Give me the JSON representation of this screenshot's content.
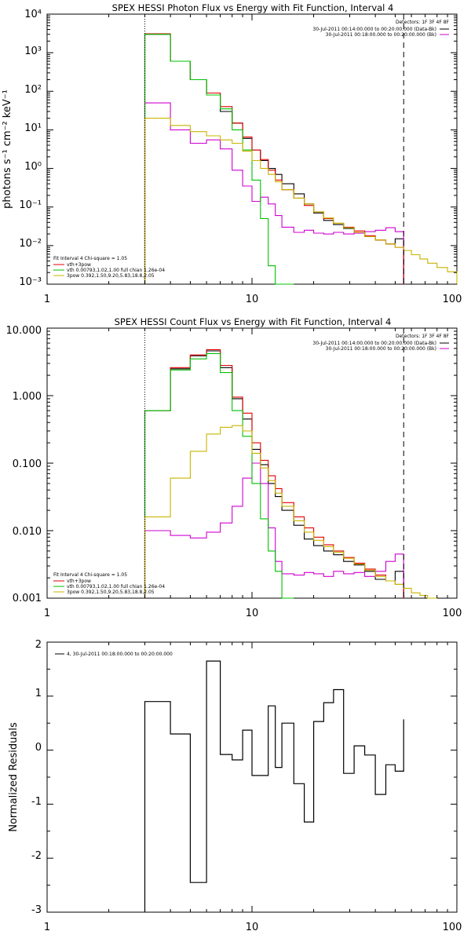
{
  "chart_data": [
    {
      "type": "line",
      "title": "SPEX HESSI Photon Flux vs Energy with Fit Function, Interval 4",
      "ylabel": "photons s⁻¹ cm⁻² keV⁻¹",
      "xscale": "log",
      "yscale": "log",
      "xlim": [
        1,
        100
      ],
      "ylim": [
        0.001,
        10000
      ],
      "x_ticks": [
        "1",
        "10",
        "100"
      ],
      "y_ticks": [
        "10⁻³",
        "10⁻²",
        "10⁻¹",
        "10⁰",
        "10¹",
        "10²",
        "10³",
        "10⁴"
      ],
      "detectors_header": "Detectors: 1F 3F 4F 8F",
      "detector_legend": [
        {
          "label": "30-Jul-2011 00:14:00.000 to 00:20:00.000 (Data-Bk)",
          "color": "#000000"
        },
        {
          "label": "30-Jul-2011 00:18:00.000 to 00:20:00.000 (Bk)",
          "color": "#d000d0"
        }
      ],
      "fit_header": "Fit Interval 4   Chi-square = 1.05",
      "fit_legend": [
        {
          "label": "vth+3pow",
          "color": "#e00000"
        },
        {
          "label": "vth 0.00793,1.02,1.00  full chian 1.26e-04",
          "color": "#00c000"
        },
        {
          "label": "3pow 0.392,1.50,9.20,5.83,18.8,2.05",
          "color": "#c8b400"
        }
      ],
      "vlines": [
        {
          "x": 3.0,
          "style": "dotted"
        },
        {
          "x": 55,
          "style": "dashed"
        }
      ],
      "edges": [
        3.0,
        4.0,
        5.0,
        6.0,
        7.0,
        8.0,
        9.0,
        10.0,
        11.0,
        12.0,
        13.0,
        14.0,
        16.0,
        18.0,
        20.0,
        22.4,
        25.0,
        28.0,
        31.5,
        35.5,
        40.0,
        45.0,
        50.0,
        55.0,
        60.0,
        66.0,
        72.0,
        80.0,
        90.0,
        100.0
      ],
      "series": [
        {
          "name": "Data-Bk",
          "color": "#000000",
          "width": 1.1,
          "values": [
            3000,
            600,
            200,
            90,
            30,
            15,
            6,
            3,
            1.6,
            1.0,
            0.7,
            0.4,
            0.22,
            0.12,
            0.07,
            0.045,
            0.035,
            0.028,
            0.022,
            0.017,
            0.014,
            0.011,
            0.015
          ]
        },
        {
          "name": "Bk",
          "color": "#d000d0",
          "width": 1.1,
          "values": [
            50,
            10,
            4.5,
            5.5,
            3.2,
            0.9,
            0.35,
            0.14,
            0.18,
            0.12,
            0.06,
            0.03,
            0.022,
            0.025,
            0.021,
            0.02,
            0.022,
            0.02,
            0.021,
            0.023,
            0.025,
            0.029,
            0.023
          ]
        },
        {
          "name": "vth+3pow",
          "color": "#e00000",
          "width": 1.1,
          "values": [
            3100,
            600,
            200,
            90,
            40,
            15,
            6.5,
            3,
            1.7,
            0.9,
            0.5,
            0.28,
            0.17,
            0.11,
            0.075,
            0.05,
            0.038,
            0.03,
            0.024,
            0.018,
            0.014,
            0.011,
            0.009
          ]
        },
        {
          "name": "vth",
          "color": "#00c000",
          "width": 1.1,
          "values": [
            3000,
            600,
            200,
            80,
            35,
            10,
            3,
            0.5,
            0.05,
            0.003,
            0.001,
            0.0005
          ]
        },
        {
          "name": "3pow",
          "color": "#c8b400",
          "width": 1.1,
          "values": [
            20,
            13,
            9,
            7,
            5.5,
            4.5,
            2.8,
            1.6,
            1.0,
            0.7,
            0.45,
            0.28,
            0.17,
            0.12,
            0.075,
            0.052,
            0.038,
            0.029,
            0.022,
            0.017,
            0.014,
            0.011,
            0.009,
            0.0075,
            0.0058,
            0.0045,
            0.0035,
            0.0027,
            0.0021
          ]
        }
      ]
    },
    {
      "type": "line",
      "title": "SPEX HESSI Count Flux vs Energy with Fit Function, Interval 4",
      "ylabel": "",
      "xscale": "log",
      "yscale": "log",
      "xlim": [
        1,
        100
      ],
      "ylim": [
        0.001,
        10
      ],
      "x_ticks": [
        "1",
        "10",
        "100"
      ],
      "y_ticks": [
        "0.001",
        "0.010",
        "0.100",
        "1.000",
        "10.000"
      ],
      "detectors_header": "Detectors: 1F 3F 4F 8F",
      "detector_legend": [
        {
          "label": "30-Jul-2011 00:14:00.000 to 00:20:00.000 (Data-Bk)",
          "color": "#000000"
        },
        {
          "label": "30-Jul-2011 00:18:00.000 to 00:20:00.000 (Bk)",
          "color": "#d000d0"
        }
      ],
      "fit_header": "Fit Interval 4   Chi-square = 1.05",
      "fit_legend": [
        {
          "label": "vth+3pow",
          "color": "#e00000"
        },
        {
          "label": "vth 0.00793,1.02,1.00  full chian 1.26e-04",
          "color": "#00c000"
        },
        {
          "label": "3pow 0.392,1.50,9.20,5.83,18.8,2.05",
          "color": "#c8b400"
        }
      ],
      "vlines": [
        {
          "x": 3.0,
          "style": "dotted"
        },
        {
          "x": 55,
          "style": "dashed"
        }
      ],
      "edges": [
        3.0,
        4.0,
        5.0,
        6.0,
        7.0,
        8.0,
        9.0,
        10.0,
        11.0,
        12.0,
        13.0,
        14.0,
        16.0,
        18.0,
        20.0,
        22.4,
        25.0,
        28.0,
        31.5,
        35.5,
        40.0,
        45.0,
        50.0,
        55.0,
        60.0,
        66.0,
        72.0,
        80.0,
        90.0,
        100.0
      ],
      "series": [
        {
          "name": "Data-Bk",
          "color": "#000000",
          "width": 1.1,
          "values": [
            0.6,
            2.5,
            3.9,
            4.6,
            2.6,
            0.9,
            0.45,
            0.16,
            0.095,
            0.05,
            0.032,
            0.02,
            0.012,
            0.0075,
            0.006,
            0.005,
            0.0044,
            0.0035,
            0.0031,
            0.0025,
            0.0019,
            0.0018,
            0.0025
          ]
        },
        {
          "name": "Bk",
          "color": "#d000d0",
          "width": 1.1,
          "values": [
            0.01,
            0.0085,
            0.0078,
            0.0095,
            0.013,
            0.023,
            0.06,
            0.1,
            0.05,
            0.011,
            0.0035,
            0.0023,
            0.0022,
            0.0024,
            0.0023,
            0.0021,
            0.0025,
            0.0023,
            0.0024,
            0.0021,
            0.0025,
            0.0035,
            0.0045
          ]
        },
        {
          "name": "vth+3pow",
          "color": "#e00000",
          "width": 1.1,
          "values": [
            0.6,
            2.6,
            4.0,
            4.8,
            2.8,
            0.95,
            0.55,
            0.2,
            0.11,
            0.065,
            0.042,
            0.026,
            0.016,
            0.011,
            0.008,
            0.0062,
            0.005,
            0.004,
            0.0033,
            0.0027,
            0.0022,
            0.0018,
            0.0016
          ]
        },
        {
          "name": "vth",
          "color": "#00c000",
          "width": 1.1,
          "values": [
            0.6,
            2.4,
            3.5,
            4.2,
            2.2,
            0.6,
            0.25,
            0.05,
            0.015,
            0.005,
            0.0025,
            0.001
          ]
        },
        {
          "name": "3pow",
          "color": "#c8b400",
          "width": 1.1,
          "values": [
            0.016,
            0.06,
            0.15,
            0.27,
            0.34,
            0.36,
            0.3,
            0.14,
            0.085,
            0.055,
            0.036,
            0.023,
            0.014,
            0.0095,
            0.0072,
            0.0058,
            0.0048,
            0.0039,
            0.0032,
            0.0026,
            0.0021,
            0.0018,
            0.0016,
            0.0014,
            0.0012,
            0.0011,
            0.001
          ]
        }
      ]
    },
    {
      "type": "line",
      "title": "",
      "ylabel": "Normalized Residuals",
      "xscale": "log",
      "yscale": "linear",
      "xlim": [
        1,
        100
      ],
      "ylim": [
        -3,
        2
      ],
      "x_ticks": [
        "1",
        "10",
        "100"
      ],
      "y_ticks": [
        "-3",
        "-2",
        "-1",
        "0",
        "1",
        "2"
      ],
      "legend_text": "4, 30-Jul-2011 00:18:00.000 to 00:20:00.000",
      "edges": [
        3.0,
        4.0,
        5.0,
        6.0,
        7.0,
        8.0,
        9.0,
        10.0,
        11.0,
        12.0,
        13.0,
        14.0,
        16.0,
        18.0,
        20.0,
        22.4,
        25.0,
        28.0,
        31.5,
        35.5,
        40.0,
        45.0,
        50.0,
        55.0
      ],
      "series": [
        {
          "name": "residuals",
          "color": "#000000",
          "width": 1.2,
          "values": [
            0.9,
            0.3,
            -2.45,
            1.65,
            -0.08,
            -0.18,
            0.37,
            -0.47,
            -0.47,
            0.82,
            -0.32,
            0.5,
            -0.62,
            -1.33,
            0.53,
            0.88,
            1.12,
            -0.43,
            0.08,
            -0.09,
            -0.82,
            -0.27,
            -0.39,
            0.57
          ],
          "start_from_bottom": true,
          "end_to_bottom": true
        }
      ]
    }
  ]
}
